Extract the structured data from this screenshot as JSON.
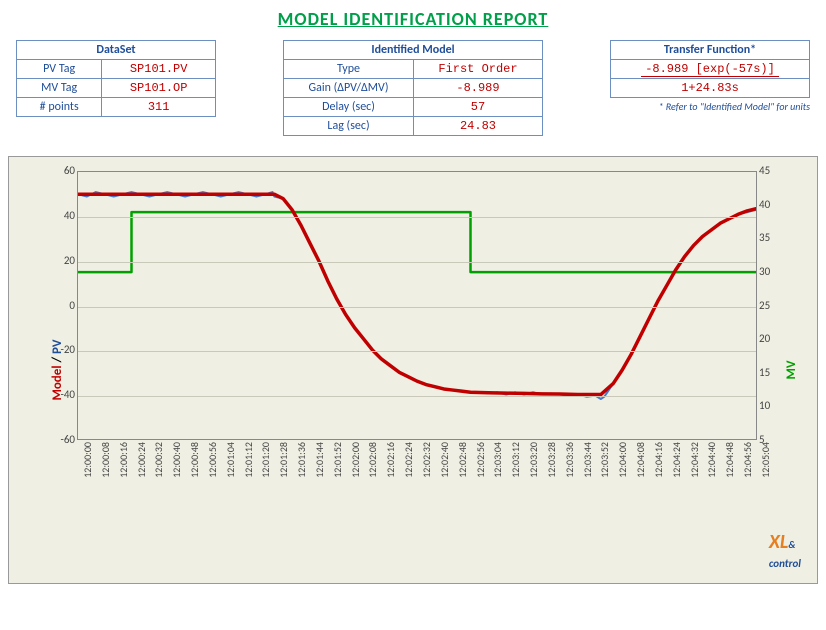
{
  "report": {
    "title": "MODEL IDENTIFICATION REPORT",
    "title_color": "#00a04a"
  },
  "dataset_table": {
    "header": "DataSet",
    "rows": [
      {
        "label": "PV Tag",
        "value": "SP101.PV",
        "color": "#c00000"
      },
      {
        "label": "MV Tag",
        "value": "SP101.OP",
        "color": "#c00000"
      },
      {
        "label": "# points",
        "value": "311",
        "color": "#c00000"
      }
    ]
  },
  "model_table": {
    "header": "Identified Model",
    "rows": [
      {
        "label": "Type",
        "value": "First Order",
        "color": "#c00000"
      },
      {
        "label": "Gain (ΔPV/ΔMV)",
        "value": "-8.989",
        "color": "#c00000"
      },
      {
        "label": "Delay (sec)",
        "value": "57",
        "color": "#c00000"
      },
      {
        "label": "Lag (sec)",
        "value": "24.83",
        "color": "#c00000"
      }
    ]
  },
  "tf_table": {
    "header": "Transfer Function*",
    "numerator": "-8.989 [exp(-57s)]",
    "denominator": "1+24.83s",
    "footnote": "* Refer to \"Identified Model\" for units"
  },
  "chart": {
    "type": "line",
    "background_color": "#efefe3",
    "grid_color": "#c9c9b9",
    "border_color": "#888888",
    "y_left": {
      "min": -60,
      "max": 60,
      "step": 20,
      "label_model": "Model",
      "label_pv": "PV",
      "model_color": "#c00000",
      "pv_color": "#1f4e99"
    },
    "y_right": {
      "min": 5,
      "max": 45,
      "step": 5,
      "label": "MV",
      "color": "#00a000"
    },
    "x_ticks": [
      "12:00:00",
      "12:00:08",
      "12:00:16",
      "12:00:24",
      "12:00:32",
      "12:00:40",
      "12:00:48",
      "12:00:56",
      "12:01:04",
      "12:01:12",
      "12:01:20",
      "12:01:28",
      "12:01:36",
      "12:01:44",
      "12:01:52",
      "12:02:00",
      "12:02:08",
      "12:02:16",
      "12:02:24",
      "12:02:32",
      "12:02:40",
      "12:02:48",
      "12:02:56",
      "12:03:04",
      "12:03:12",
      "12:03:20",
      "12:03:28",
      "12:03:36",
      "12:03:44",
      "12:03:52",
      "12:04:00",
      "12:04:08",
      "12:04:16",
      "12:04:24",
      "12:04:32",
      "12:04:40",
      "12:04:48",
      "12:04:56",
      "12:05:04"
    ],
    "series": {
      "mv": {
        "color": "#00a000",
        "width": 2.5,
        "axis": "right",
        "points": [
          [
            0,
            30
          ],
          [
            3,
            30
          ],
          [
            3,
            39
          ],
          [
            22,
            39
          ],
          [
            22,
            30
          ],
          [
            39,
            30
          ]
        ]
      },
      "pv": {
        "color": "#4a7ac8",
        "width": 2,
        "axis": "left",
        "points": [
          [
            0,
            50
          ],
          [
            0.5,
            49
          ],
          [
            1,
            51
          ],
          [
            1.5,
            50
          ],
          [
            2,
            49
          ],
          [
            2.5,
            50
          ],
          [
            3,
            51
          ],
          [
            3.5,
            50
          ],
          [
            4,
            49
          ],
          [
            4.5,
            50
          ],
          [
            5,
            51
          ],
          [
            5.5,
            50
          ],
          [
            6,
            49
          ],
          [
            6.5,
            50
          ],
          [
            7,
            51
          ],
          [
            7.5,
            50
          ],
          [
            8,
            49
          ],
          [
            8.5,
            50
          ],
          [
            9,
            51
          ],
          [
            9.5,
            50
          ],
          [
            10,
            49
          ],
          [
            10.5,
            50
          ],
          [
            10.9,
            51
          ],
          [
            11,
            49
          ],
          [
            11.5,
            48
          ],
          [
            12,
            43
          ],
          [
            12.5,
            36
          ],
          [
            13,
            28
          ],
          [
            13.5,
            20
          ],
          [
            14,
            11
          ],
          [
            14.5,
            3
          ],
          [
            15,
            -4
          ],
          [
            15.5,
            -10
          ],
          [
            16,
            -15
          ],
          [
            16.5,
            -20
          ],
          [
            17,
            -24
          ],
          [
            17.5,
            -27
          ],
          [
            18,
            -30
          ],
          [
            18.5,
            -32
          ],
          [
            19,
            -34
          ],
          [
            19.5,
            -35.5
          ],
          [
            20,
            -36.5
          ],
          [
            20.5,
            -37.5
          ],
          [
            21,
            -38
          ],
          [
            21.5,
            -38.5
          ],
          [
            22,
            -39
          ],
          [
            22.5,
            -39
          ],
          [
            23,
            -39.5
          ],
          [
            23.5,
            -39
          ],
          [
            24,
            -40
          ],
          [
            24.5,
            -39
          ],
          [
            25,
            -40
          ],
          [
            25.5,
            -39
          ],
          [
            26,
            -40
          ],
          [
            26.5,
            -39.5
          ],
          [
            27,
            -40
          ],
          [
            27.5,
            -40.5
          ],
          [
            28,
            -40
          ],
          [
            28.5,
            -41
          ],
          [
            29,
            -40.5
          ],
          [
            29.3,
            -42
          ],
          [
            29.5,
            -41
          ],
          [
            30,
            -35
          ],
          [
            30.5,
            -29
          ],
          [
            31,
            -22
          ],
          [
            31.5,
            -14
          ],
          [
            32,
            -6
          ],
          [
            32.5,
            2
          ],
          [
            33,
            9
          ],
          [
            33.5,
            16
          ],
          [
            34,
            22
          ],
          [
            34.5,
            27
          ],
          [
            35,
            31
          ],
          [
            35.5,
            34
          ],
          [
            36,
            37
          ],
          [
            36.5,
            39
          ],
          [
            37,
            41
          ],
          [
            37.5,
            42
          ],
          [
            38,
            43
          ],
          [
            38.5,
            44
          ],
          [
            39,
            45
          ]
        ]
      },
      "model": {
        "color": "#c00000",
        "width": 3.5,
        "axis": "left",
        "points": [
          [
            0,
            50
          ],
          [
            11,
            50
          ],
          [
            11.5,
            48
          ],
          [
            12,
            43
          ],
          [
            12.5,
            36
          ],
          [
            13,
            28
          ],
          [
            13.5,
            20
          ],
          [
            14,
            11
          ],
          [
            14.5,
            3
          ],
          [
            15,
            -4
          ],
          [
            15.5,
            -10
          ],
          [
            16,
            -15
          ],
          [
            16.5,
            -20
          ],
          [
            17,
            -24
          ],
          [
            17.5,
            -27
          ],
          [
            18,
            -30
          ],
          [
            18.5,
            -32
          ],
          [
            19,
            -34
          ],
          [
            19.5,
            -35.5
          ],
          [
            20,
            -36.5
          ],
          [
            20.5,
            -37.5
          ],
          [
            21,
            -38
          ],
          [
            21.5,
            -38.5
          ],
          [
            22,
            -39
          ],
          [
            23,
            -39.2
          ],
          [
            24,
            -39.4
          ],
          [
            25,
            -39.5
          ],
          [
            26,
            -39.7
          ],
          [
            27,
            -39.8
          ],
          [
            28,
            -40
          ],
          [
            29,
            -40
          ],
          [
            29.3,
            -40
          ],
          [
            30,
            -35
          ],
          [
            30.5,
            -29
          ],
          [
            31,
            -22
          ],
          [
            31.5,
            -14
          ],
          [
            32,
            -6
          ],
          [
            32.5,
            2
          ],
          [
            33,
            9
          ],
          [
            33.5,
            16
          ],
          [
            34,
            22
          ],
          [
            34.5,
            27
          ],
          [
            35,
            31
          ],
          [
            35.5,
            34
          ],
          [
            36,
            37
          ],
          [
            36.5,
            39
          ],
          [
            37,
            41
          ],
          [
            37.5,
            42.5
          ],
          [
            38,
            43.5
          ],
          [
            38.5,
            44
          ],
          [
            39,
            44.5
          ]
        ]
      }
    },
    "logo_text_1": "XL",
    "logo_text_2": "control"
  }
}
